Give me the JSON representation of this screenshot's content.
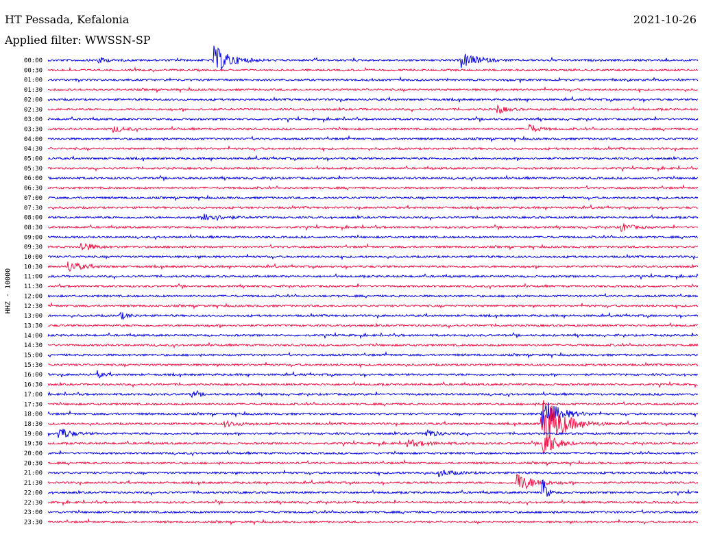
{
  "header": {
    "station": "HT Pessada, Kefalonia",
    "date": "2021-10-26",
    "filter": "Applied filter: WWSSN-SP"
  },
  "chart_data": {
    "type": "line",
    "title": "HT Pessada, Kefalonia",
    "ylabel": "HHZ - 10000",
    "row_labels": [
      "00:00",
      "00:30",
      "01:00",
      "01:30",
      "02:00",
      "02:30",
      "03:00",
      "03:30",
      "04:00",
      "04:30",
      "05:00",
      "05:30",
      "06:00",
      "06:30",
      "07:00",
      "07:30",
      "08:00",
      "08:30",
      "09:00",
      "09:30",
      "10:00",
      "10:30",
      "11:00",
      "11:30",
      "12:00",
      "12:30",
      "13:00",
      "13:30",
      "14:00",
      "14:30",
      "15:00",
      "15:30",
      "16:00",
      "16:30",
      "17:00",
      "17:30",
      "18:00",
      "18:30",
      "19:00",
      "19:30",
      "20:00",
      "20:30",
      "21:00",
      "21:30",
      "22:00",
      "22:30",
      "23:00",
      "23:30"
    ],
    "colors": [
      "#0000e0",
      "#ee1144"
    ],
    "events": [
      {
        "row": 0,
        "x": 0.255,
        "amp": 22,
        "dur": 0.03
      },
      {
        "row": 0,
        "x": 0.635,
        "amp": 12,
        "dur": 0.03
      },
      {
        "row": 0,
        "x": 0.075,
        "amp": 6,
        "dur": 0.015
      },
      {
        "row": 5,
        "x": 0.69,
        "amp": 8,
        "dur": 0.015
      },
      {
        "row": 7,
        "x": 0.1,
        "amp": 5,
        "dur": 0.02
      },
      {
        "row": 7,
        "x": 0.74,
        "amp": 8,
        "dur": 0.015
      },
      {
        "row": 16,
        "x": 0.24,
        "amp": 7,
        "dur": 0.03
      },
      {
        "row": 17,
        "x": 0.88,
        "amp": 7,
        "dur": 0.02
      },
      {
        "row": 19,
        "x": 0.05,
        "amp": 9,
        "dur": 0.02
      },
      {
        "row": 21,
        "x": 0.03,
        "amp": 9,
        "dur": 0.025
      },
      {
        "row": 26,
        "x": 0.11,
        "amp": 6,
        "dur": 0.015
      },
      {
        "row": 32,
        "x": 0.075,
        "amp": 6,
        "dur": 0.01
      },
      {
        "row": 34,
        "x": 0.22,
        "amp": 6,
        "dur": 0.01
      },
      {
        "row": 36,
        "x": 0.76,
        "amp": 28,
        "dur": 0.03
      },
      {
        "row": 37,
        "x": 0.76,
        "amp": 48,
        "dur": 0.035
      },
      {
        "row": 37,
        "x": 0.27,
        "amp": 4,
        "dur": 0.03
      },
      {
        "row": 38,
        "x": 0.015,
        "amp": 12,
        "dur": 0.02
      },
      {
        "row": 38,
        "x": 0.58,
        "amp": 7,
        "dur": 0.02
      },
      {
        "row": 39,
        "x": 0.55,
        "amp": 5,
        "dur": 0.04
      },
      {
        "row": 39,
        "x": 0.76,
        "amp": 30,
        "dur": 0.02
      },
      {
        "row": 42,
        "x": 0.6,
        "amp": 5,
        "dur": 0.03
      },
      {
        "row": 43,
        "x": 0.72,
        "amp": 16,
        "dur": 0.03
      },
      {
        "row": 44,
        "x": 0.76,
        "amp": 30,
        "dur": 0.008
      }
    ]
  }
}
